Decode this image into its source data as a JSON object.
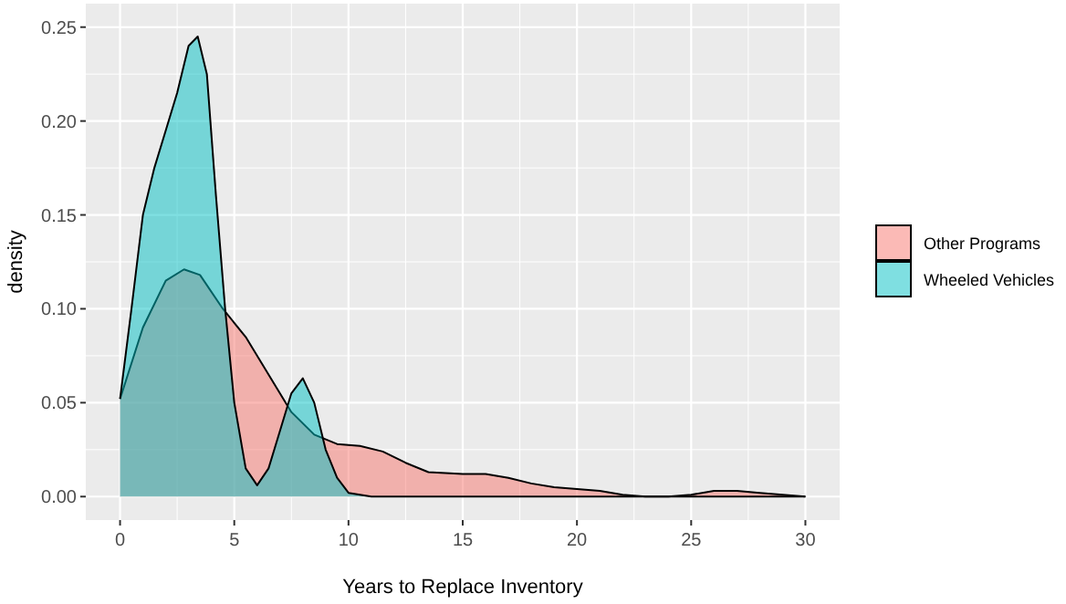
{
  "chart_data": {
    "type": "area",
    "xlabel": "Years to Replace Inventory",
    "ylabel": "density",
    "xlim": [
      -1.5,
      31.5
    ],
    "ylim": [
      -0.0125,
      0.2625
    ],
    "xticks": [
      0,
      5,
      10,
      15,
      20,
      25,
      30
    ],
    "yticks": [
      {
        "value": 0,
        "label": "0.00"
      },
      {
        "value": 0.05,
        "label": "0.05"
      },
      {
        "value": 0.1,
        "label": "0.10"
      },
      {
        "value": 0.15,
        "label": "0.15"
      },
      {
        "value": 0.2,
        "label": "0.20"
      },
      {
        "value": 0.25,
        "label": "0.25"
      }
    ],
    "grid": true,
    "legend": "right",
    "series": [
      {
        "name": "Other Programs",
        "color": "#f8766d",
        "x": [
          0,
          1,
          2,
          2.8,
          3.5,
          4.5,
          5.5,
          6.5,
          7.5,
          8.5,
          9.5,
          10.5,
          11.5,
          12.5,
          13.5,
          15,
          16,
          17,
          18,
          19,
          20,
          21,
          22,
          23,
          24,
          25,
          26,
          27,
          28,
          29,
          30
        ],
        "values": [
          0.052,
          0.09,
          0.115,
          0.121,
          0.118,
          0.1,
          0.085,
          0.065,
          0.045,
          0.033,
          0.028,
          0.027,
          0.024,
          0.018,
          0.013,
          0.012,
          0.012,
          0.01,
          0.007,
          0.005,
          0.004,
          0.003,
          0.001,
          0,
          0,
          0.001,
          0.003,
          0.003,
          0.002,
          0.001,
          0
        ]
      },
      {
        "name": "Wheeled Vehicles",
        "color": "#00bfc4",
        "x": [
          0,
          0.5,
          1,
          1.5,
          2,
          2.5,
          3,
          3.4,
          3.8,
          4.2,
          4.6,
          5,
          5.5,
          6,
          6.5,
          7,
          7.5,
          8,
          8.5,
          9,
          9.5,
          10,
          11,
          15,
          20,
          25,
          30
        ],
        "values": [
          0.052,
          0.1,
          0.15,
          0.175,
          0.195,
          0.215,
          0.24,
          0.245,
          0.225,
          0.16,
          0.1,
          0.05,
          0.015,
          0.006,
          0.015,
          0.035,
          0.055,
          0.063,
          0.05,
          0.025,
          0.01,
          0.002,
          0,
          0,
          0,
          0,
          0
        ]
      }
    ]
  }
}
